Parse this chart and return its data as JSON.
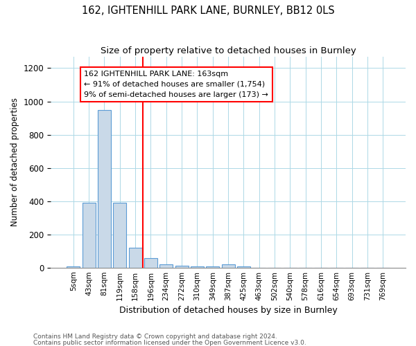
{
  "title": "162, IGHTENHILL PARK LANE, BURNLEY, BB12 0LS",
  "subtitle": "Size of property relative to detached houses in Burnley",
  "xlabel": "Distribution of detached houses by size in Burnley",
  "ylabel": "Number of detached properties",
  "footnote1": "Contains HM Land Registry data © Crown copyright and database right 2024.",
  "footnote2": "Contains public sector information licensed under the Open Government Licence v3.0.",
  "annotation_line1": "162 IGHTENHILL PARK LANE: 163sqm",
  "annotation_line2": "← 91% of detached houses are smaller (1,754)",
  "annotation_line3": "9% of semi-detached houses are larger (173) →",
  "bar_labels": [
    "5sqm",
    "43sqm",
    "81sqm",
    "119sqm",
    "158sqm",
    "196sqm",
    "234sqm",
    "272sqm",
    "310sqm",
    "349sqm",
    "387sqm",
    "425sqm",
    "463sqm",
    "502sqm",
    "540sqm",
    "578sqm",
    "616sqm",
    "654sqm",
    "693sqm",
    "731sqm",
    "769sqm"
  ],
  "bar_values": [
    5,
    390,
    950,
    390,
    120,
    55,
    20,
    12,
    5,
    5,
    20,
    5,
    0,
    0,
    0,
    0,
    0,
    0,
    0,
    0,
    0
  ],
  "bar_color": "#c9d9e8",
  "bar_edge_color": "#5b9bd5",
  "ylim": [
    0,
    1270
  ],
  "yticks": [
    0,
    200,
    400,
    600,
    800,
    1000,
    1200
  ],
  "figsize": [
    6.0,
    5.0
  ],
  "dpi": 100
}
